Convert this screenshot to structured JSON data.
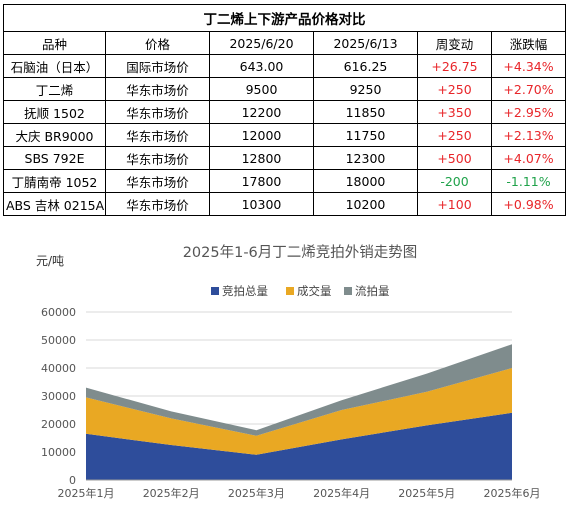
{
  "table": {
    "title": "丁二烯上下游产品价格对比",
    "headers": [
      "品种",
      "价格",
      "2025/6/20",
      "2025/6/13",
      "周变动",
      "涨跌幅"
    ],
    "rows": [
      {
        "product": "石脑油（日本）",
        "market": "国际市场价",
        "price_0620": "643.00",
        "price_0613": "616.25",
        "change": "+26.75",
        "pct": "+4.34%",
        "dir": "up"
      },
      {
        "product": "丁二烯",
        "market": "华东市场价",
        "price_0620": "9500",
        "price_0613": "9250",
        "change": "+250",
        "pct": "+2.70%",
        "dir": "up"
      },
      {
        "product": "抚顺 1502",
        "market": "华东市场价",
        "price_0620": "12200",
        "price_0613": "11850",
        "change": "+350",
        "pct": "+2.95%",
        "dir": "up"
      },
      {
        "product": "大庆 BR9000",
        "market": "华东市场价",
        "price_0620": "12000",
        "price_0613": "11750",
        "change": "+250",
        "pct": "+2.13%",
        "dir": "up"
      },
      {
        "product": "SBS 792E",
        "market": "华东市场价",
        "price_0620": "12800",
        "price_0613": "12300",
        "change": "+500",
        "pct": "+4.07%",
        "dir": "up"
      },
      {
        "product": "丁腈南帝 1052",
        "market": "华东市场价",
        "price_0620": "17800",
        "price_0613": "18000",
        "change": "-200",
        "pct": "-1.11%",
        "dir": "down"
      },
      {
        "product": "ABS 吉林 0215A",
        "market": "华东市场价",
        "price_0620": "10300",
        "price_0613": "10200",
        "change": "+100",
        "pct": "+0.98%",
        "dir": "up"
      }
    ],
    "colors": {
      "up": "#e8262a",
      "down": "#1fa24a"
    }
  },
  "chart_data": {
    "type": "area",
    "stacked": true,
    "title": "2025年1-6月丁二烯竞拍外销走势图",
    "ylabel": "元/吨",
    "categories": [
      "2025年1月",
      "2025年2月",
      "2025年3月",
      "2025年4月",
      "2025年5月",
      "2025年6月"
    ],
    "ylim": [
      0,
      60000
    ],
    "yticks": [
      "0",
      "10000",
      "20000",
      "30000",
      "40000",
      "50000",
      "60000"
    ],
    "grid": true,
    "legend_position": "top",
    "series": [
      {
        "name": "竞拍总量",
        "color": "#2e4d9b",
        "values": [
          16500,
          12500,
          9000,
          14500,
          19500,
          24000
        ]
      },
      {
        "name": "成交量",
        "color": "#e9a823",
        "values": [
          13000,
          9500,
          6800,
          10500,
          12000,
          16000
        ]
      },
      {
        "name": "流拍量",
        "color": "#7f8c8d",
        "values": [
          3500,
          2500,
          2000,
          3500,
          6500,
          8500
        ]
      }
    ]
  }
}
